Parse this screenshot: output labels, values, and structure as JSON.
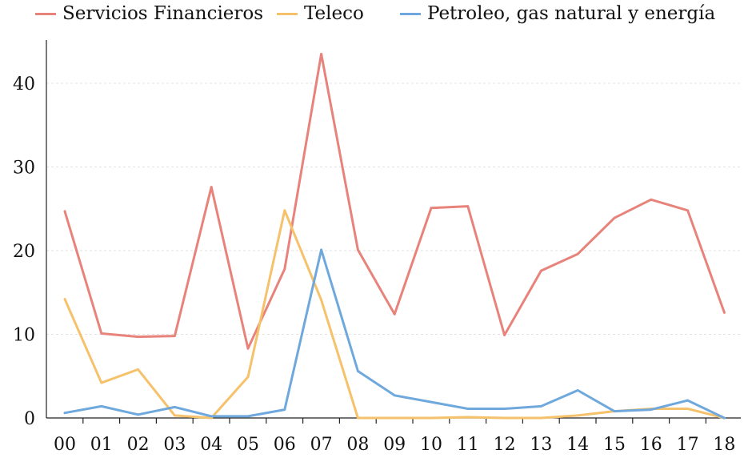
{
  "chart_data": {
    "type": "line",
    "categories": [
      "00",
      "01",
      "02",
      "03",
      "04",
      "05",
      "06",
      "07",
      "08",
      "09",
      "10",
      "11",
      "12",
      "13",
      "14",
      "15",
      "16",
      "17",
      "18"
    ],
    "series": [
      {
        "name": "Servicios Financieros",
        "color": "#E8837B",
        "values": [
          24.7,
          10.1,
          9.7,
          9.8,
          27.6,
          8.3,
          17.8,
          43.5,
          20.1,
          12.4,
          25.1,
          25.3,
          9.9,
          17.6,
          19.6,
          23.9,
          26.1,
          24.8,
          12.6
        ]
      },
      {
        "name": "Teleco",
        "color": "#F5C26B",
        "values": [
          14.2,
          4.2,
          5.8,
          0.3,
          0.0,
          4.9,
          24.8,
          14.1,
          0.0,
          0.0,
          0.0,
          0.1,
          0.0,
          0.0,
          0.3,
          0.8,
          1.1,
          1.1,
          0.0
        ]
      },
      {
        "name": "Petroleo, gas natural y energía",
        "color": "#6FA8DC",
        "values": [
          0.6,
          1.4,
          0.4,
          1.3,
          0.2,
          0.2,
          1.0,
          20.1,
          5.6,
          2.7,
          1.9,
          1.1,
          1.1,
          1.4,
          3.3,
          0.8,
          1.0,
          2.1,
          0.0
        ]
      }
    ],
    "y_ticks": [
      "0",
      "10",
      "20",
      "30",
      "40"
    ],
    "ylim": [
      0,
      45
    ],
    "grid": true,
    "legend_position": "top"
  }
}
